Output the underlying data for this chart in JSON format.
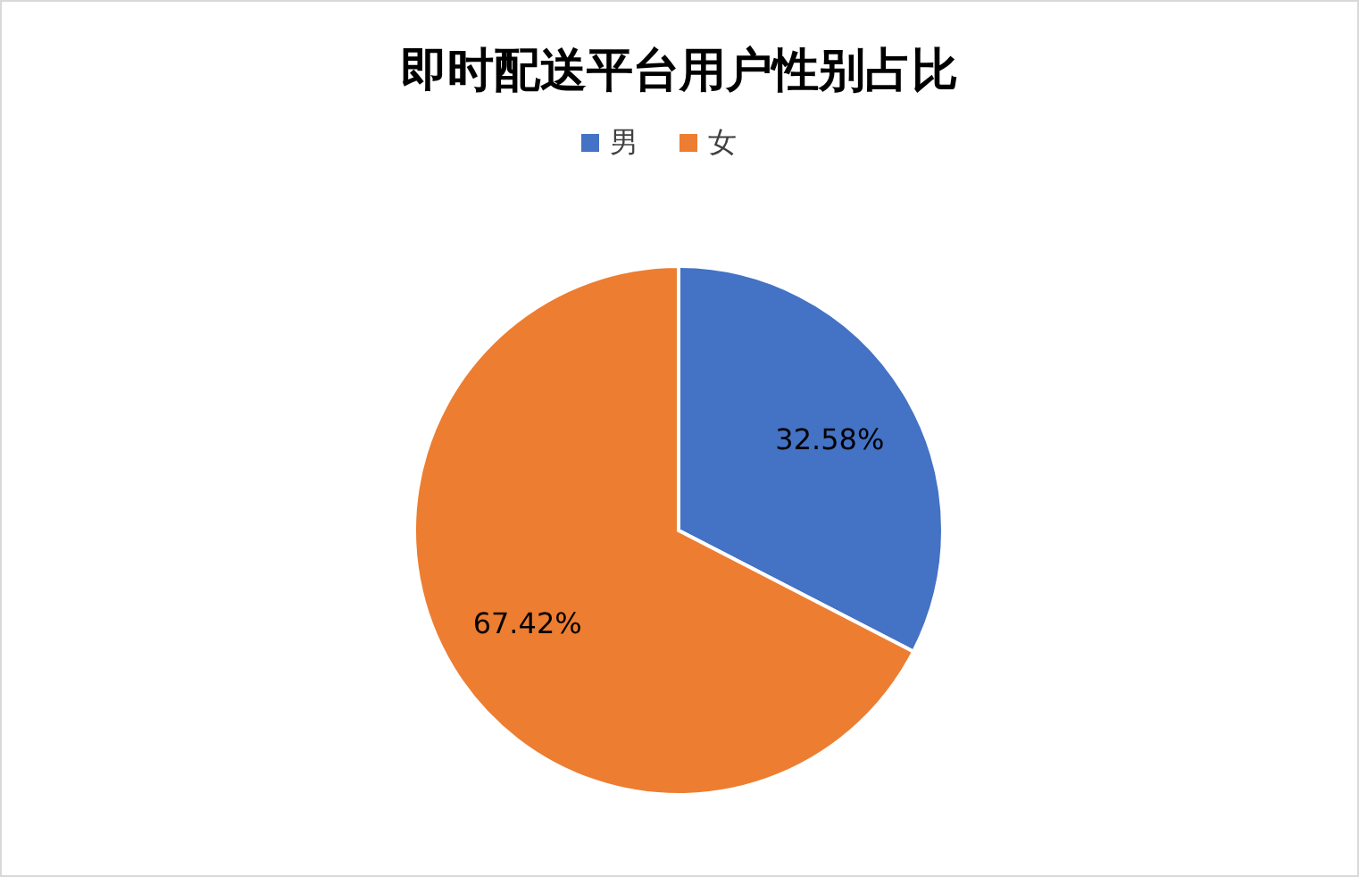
{
  "chart_data": {
    "type": "pie",
    "title": "即时配送平台用户性别占比",
    "categories": [
      "男",
      "女"
    ],
    "values": [
      32.58,
      67.42
    ],
    "colors": [
      "#4472c4",
      "#ed7d31"
    ],
    "value_labels": [
      "32.58%",
      "67.42%"
    ],
    "legend": "top"
  }
}
